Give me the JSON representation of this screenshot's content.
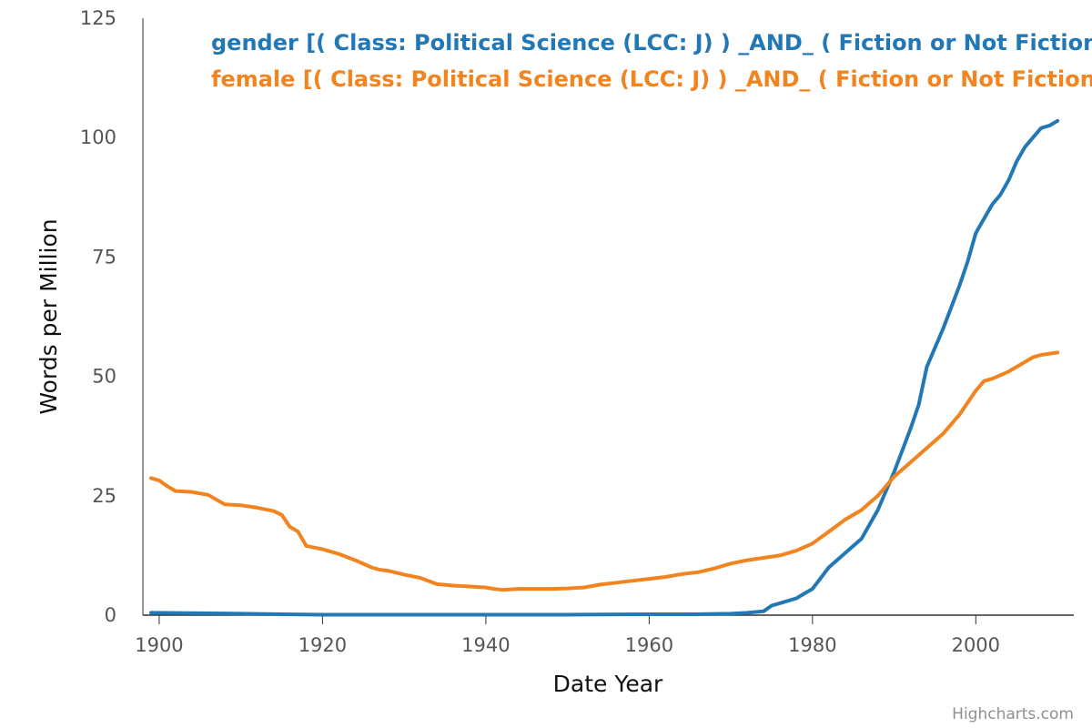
{
  "chart_data": {
    "type": "line",
    "title": "",
    "xlabel": "Date Year",
    "ylabel": "Words per Million",
    "xlim": [
      1898,
      2012
    ],
    "ylim": [
      0,
      125
    ],
    "x_ticks": [
      1900,
      1920,
      1940,
      1960,
      1980,
      2000
    ],
    "y_ticks": [
      0,
      25,
      50,
      75,
      100,
      125
    ],
    "grid": false,
    "legend_position": "top",
    "credits": "Highcharts.com",
    "series": [
      {
        "name": "gender [( Class: Political Science (LCC: J) ) _AND_ ( Fiction or Not Fiction",
        "color": "#2278B5",
        "x": [
          1899,
          1905,
          1910,
          1915,
          1920,
          1930,
          1940,
          1950,
          1960,
          1965,
          1970,
          1972,
          1974,
          1975,
          1976,
          1978,
          1980,
          1982,
          1984,
          1986,
          1988,
          1990,
          1992,
          1993,
          1994,
          1996,
          1998,
          1999,
          2000,
          2001,
          2002,
          2003,
          2004,
          2005,
          2006,
          2007,
          2008,
          2009,
          2010
        ],
        "values": [
          0.5,
          0.4,
          0.3,
          0.2,
          0.1,
          0.1,
          0.1,
          0.1,
          0.2,
          0.2,
          0.3,
          0.5,
          0.8,
          2.0,
          2.5,
          3.5,
          5.5,
          10,
          13,
          16,
          22,
          30,
          39,
          44,
          52,
          60,
          69,
          74,
          80,
          83,
          86,
          88,
          91,
          95,
          98,
          100,
          102,
          102.5,
          103.5
        ]
      },
      {
        "name": "female [( Class: Political Science (LCC: J) ) _AND_ ( Fiction or Not Fiction",
        "color": "#F28420",
        "x": [
          1899,
          1900,
          1901,
          1902,
          1904,
          1906,
          1908,
          1910,
          1912,
          1914,
          1915,
          1916,
          1917,
          1918,
          1920,
          1922,
          1924,
          1926,
          1927,
          1928,
          1930,
          1932,
          1934,
          1936,
          1938,
          1940,
          1941,
          1942,
          1944,
          1946,
          1948,
          1950,
          1952,
          1954,
          1956,
          1958,
          1960,
          1962,
          1964,
          1966,
          1968,
          1970,
          1972,
          1974,
          1976,
          1978,
          1980,
          1982,
          1984,
          1986,
          1988,
          1990,
          1992,
          1994,
          1996,
          1998,
          2000,
          2001,
          2002,
          2004,
          2006,
          2007,
          2008,
          2010
        ],
        "values": [
          28.7,
          28.2,
          27,
          26,
          25.8,
          25.2,
          23.2,
          23,
          22.5,
          21.8,
          21,
          18.5,
          17.5,
          14.5,
          13.8,
          12.8,
          11.5,
          10,
          9.5,
          9.3,
          8.5,
          7.8,
          6.5,
          6.2,
          6.0,
          5.8,
          5.5,
          5.3,
          5.5,
          5.5,
          5.5,
          5.6,
          5.8,
          6.4,
          6.8,
          7.2,
          7.6,
          8.0,
          8.6,
          9.0,
          9.8,
          10.8,
          11.5,
          12.0,
          12.5,
          13.5,
          15.0,
          17.5,
          20.0,
          22.0,
          25.0,
          29.0,
          32.0,
          35.0,
          38.0,
          42.0,
          47.0,
          49.0,
          49.5,
          51.0,
          53.0,
          54.0,
          54.5,
          55.0
        ]
      }
    ]
  }
}
